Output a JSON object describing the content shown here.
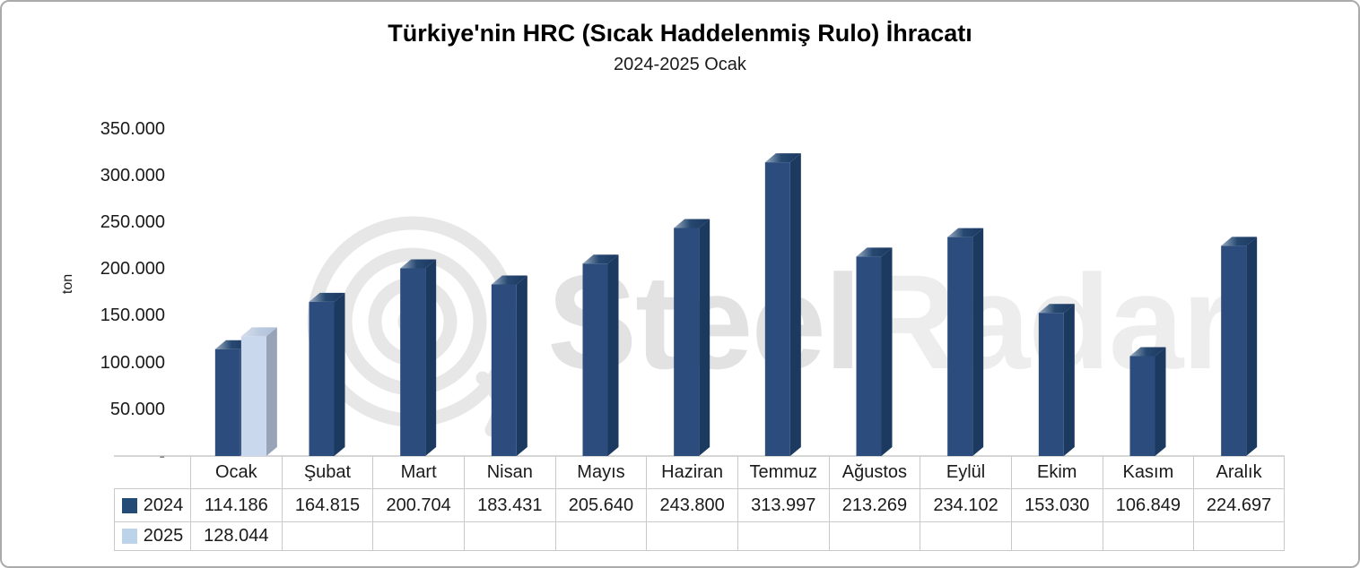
{
  "title": "Türkiye'nin HRC (Sıcak Haddelenmiş Rulo) İhracatı",
  "subtitle": "2024-2025 Ocak",
  "y_axis": {
    "title": "ton",
    "tick_labels": [
      "350.000",
      "300.000",
      "250.000",
      "200.000",
      "150.000",
      "100.000",
      "50.000",
      "-"
    ]
  },
  "watermark": {
    "brand_first": "Steel",
    "brand_second": "Radar",
    "logo": "radar-rings-icon"
  },
  "colors": {
    "bar_2024_front": "#2B4C7C",
    "bar_2024_side": "#1C3A60",
    "bar_2024_top_light": "#9BADC3",
    "bar_2024_top_dark": "#1B3760",
    "bar_2025_front": "#CAD8EE",
    "bar_2025_side": "#97A4B8",
    "bar_2025_top_light": "#D8DFEB",
    "bar_2025_top_dark": "#AFC0D8",
    "legend_2024": "#244B76",
    "legend_2025": "#BDD3EA",
    "axis_line": "#C9C9C9",
    "watermark_steel": "#E2E2E2",
    "watermark_radar": "#EDEDED",
    "watermark_logo": "#E7E7E7"
  },
  "chart_data": {
    "type": "bar",
    "style": "3d-clustered-column",
    "title": "Türkiye'nin HRC (Sıcak Haddelenmiş Rulo) İhracatı",
    "subtitle": "2024-2025 Ocak",
    "ylabel": "ton",
    "xlabel": "",
    "ylim": [
      0,
      350000
    ],
    "ytick_interval": 50000,
    "grid": false,
    "legend_position": "left-of-data-table",
    "categories": [
      "Ocak",
      "Şubat",
      "Mart",
      "Nisan",
      "Mayıs",
      "Haziran",
      "Temmuz",
      "Ağustos",
      "Eylül",
      "Ekim",
      "Kasım",
      "Aralık"
    ],
    "series": [
      {
        "name": "2024",
        "values": [
          114186,
          164815,
          200704,
          183431,
          205640,
          243800,
          313997,
          213269,
          234102,
          153030,
          106849,
          224697
        ]
      },
      {
        "name": "2025",
        "values": [
          128044,
          null,
          null,
          null,
          null,
          null,
          null,
          null,
          null,
          null,
          null,
          null
        ]
      }
    ]
  },
  "table": {
    "rows": [
      {
        "label": "2024",
        "values": [
          "114.186",
          "164.815",
          "200.704",
          "183.431",
          "205.640",
          "243.800",
          "313.997",
          "213.269",
          "234.102",
          "153.030",
          "106.849",
          "224.697"
        ]
      },
      {
        "label": "2025",
        "values": [
          "128.044",
          "",
          "",
          "",
          "",
          "",
          "",
          "",
          "",
          "",
          "",
          ""
        ]
      }
    ]
  }
}
